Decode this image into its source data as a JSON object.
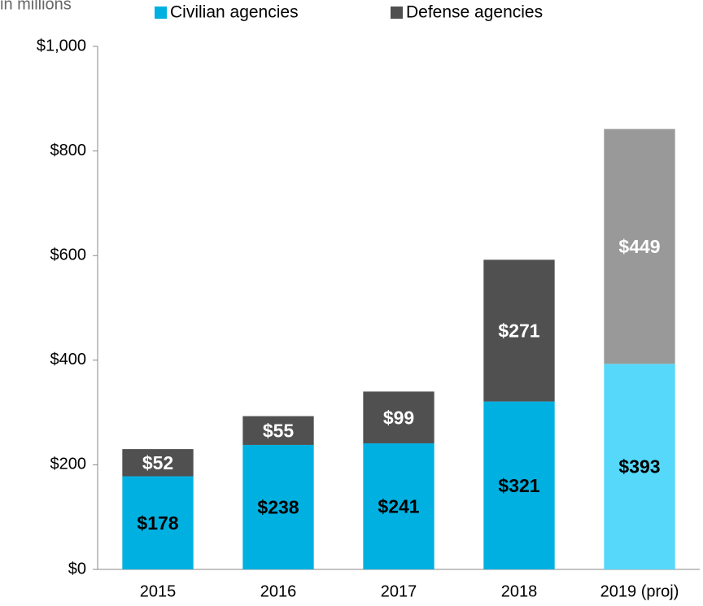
{
  "chart_data": {
    "type": "stacked-bar",
    "subtitle": "in millions",
    "categories": [
      "2015",
      "2016",
      "2017",
      "2018",
      "2019 (proj)"
    ],
    "series": [
      {
        "name": "Civilian agencies",
        "color": "#00b0e0",
        "point_colors": [
          "#00b0e0",
          "#00b0e0",
          "#00b0e0",
          "#00b0e0",
          "#55d8fa"
        ],
        "label_color": "#000000",
        "values": [
          178,
          238,
          241,
          321,
          393
        ],
        "value_labels": [
          "$178",
          "$238",
          "$241",
          "$321",
          "$393"
        ]
      },
      {
        "name": "Defense agencies",
        "color": "#505050",
        "point_colors": [
          "#505050",
          "#505050",
          "#505050",
          "#505050",
          "#999999"
        ],
        "label_color": "#ffffff",
        "values": [
          52,
          55,
          99,
          271,
          449
        ],
        "value_labels": [
          "$52",
          "$55",
          "$99",
          "$271",
          "$449"
        ]
      }
    ],
    "ylim": [
      0,
      1000
    ],
    "yticks": [
      {
        "value": 0,
        "label": "$0"
      },
      {
        "value": 200,
        "label": "$200"
      },
      {
        "value": 400,
        "label": "$400"
      },
      {
        "value": 600,
        "label": "$600"
      },
      {
        "value": 800,
        "label": "$800"
      },
      {
        "value": 1000,
        "label": "$1,000"
      }
    ],
    "grid": false
  }
}
